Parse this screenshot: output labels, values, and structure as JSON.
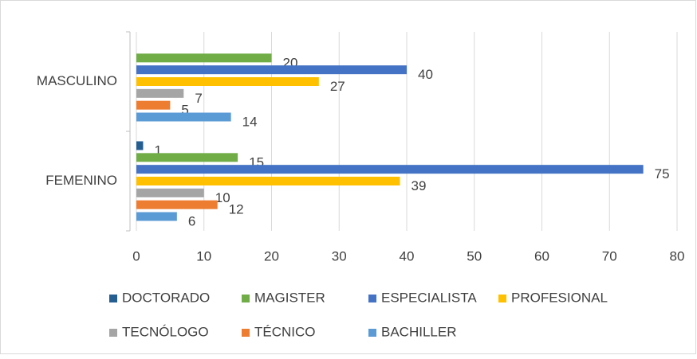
{
  "chart_data": {
    "type": "bar",
    "orientation": "horizontal",
    "categories": [
      "MASCULINO",
      "FEMENINO"
    ],
    "series": [
      {
        "name": "DOCTORADO",
        "color": "#255e91",
        "values": [
          null,
          1
        ]
      },
      {
        "name": "MAGISTER",
        "color": "#70ad47",
        "values": [
          20,
          15
        ]
      },
      {
        "name": "ESPECIALISTA",
        "color": "#4472c4",
        "values": [
          40,
          75
        ]
      },
      {
        "name": "PROFESIONAL",
        "color": "#ffc000",
        "values": [
          27,
          39
        ]
      },
      {
        "name": "TECNÓLOGO",
        "color": "#a5a5a5",
        "values": [
          7,
          10
        ]
      },
      {
        "name": "TÉCNICO",
        "color": "#ed7d31",
        "values": [
          5,
          12
        ]
      },
      {
        "name": "BACHILLER",
        "color": "#5b9bd5",
        "values": [
          14,
          6
        ]
      }
    ],
    "xlim": [
      0,
      80
    ],
    "xticks": [
      0,
      10,
      20,
      30,
      40,
      50,
      60,
      70,
      80
    ],
    "grid": true,
    "legend": "bottom"
  }
}
